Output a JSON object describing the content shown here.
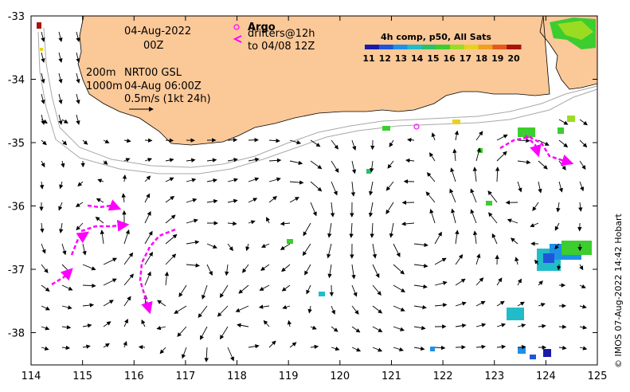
{
  "date_label": "04-Aug-2022",
  "time_label": "00Z",
  "depth_label_1": "200m",
  "depth_label_2": "1000m",
  "model_label": "NRT00 GSL",
  "model_time": "04-Aug 06:00Z",
  "scale_label": "0.5m/s (1kt 24h)",
  "argo_label": "Argo",
  "drifters_label": "drifters@12h",
  "drifters_to": "to 04/08 12Z",
  "colorbar_title": "4h comp, p50, All Sats",
  "colorbar_ticks": [
    "11",
    "12",
    "13",
    "14",
    "15",
    "16",
    "17",
    "18",
    "19",
    "20"
  ],
  "colorbar_colors": [
    "#1a1aa8",
    "#1f55d8",
    "#1e90e6",
    "#22bcc8",
    "#2dbf6a",
    "#3ccd2e",
    "#9bdc22",
    "#e8d21e",
    "#f0a020",
    "#e35a1a",
    "#a8140e"
  ],
  "x_ticks": [
    "114",
    "115",
    "116",
    "117",
    "118",
    "119",
    "120",
    "121",
    "122",
    "123",
    "124",
    "125"
  ],
  "y_ticks": [
    "-33",
    "-34",
    "-35",
    "-36",
    "-37",
    "-38"
  ],
  "credit": "© IMOS 07-Aug-2022 14:42 Hobart",
  "colors": {
    "land": "#fbc898",
    "drifter": "#ff00ff",
    "isobath": "#a8a8a8"
  }
}
